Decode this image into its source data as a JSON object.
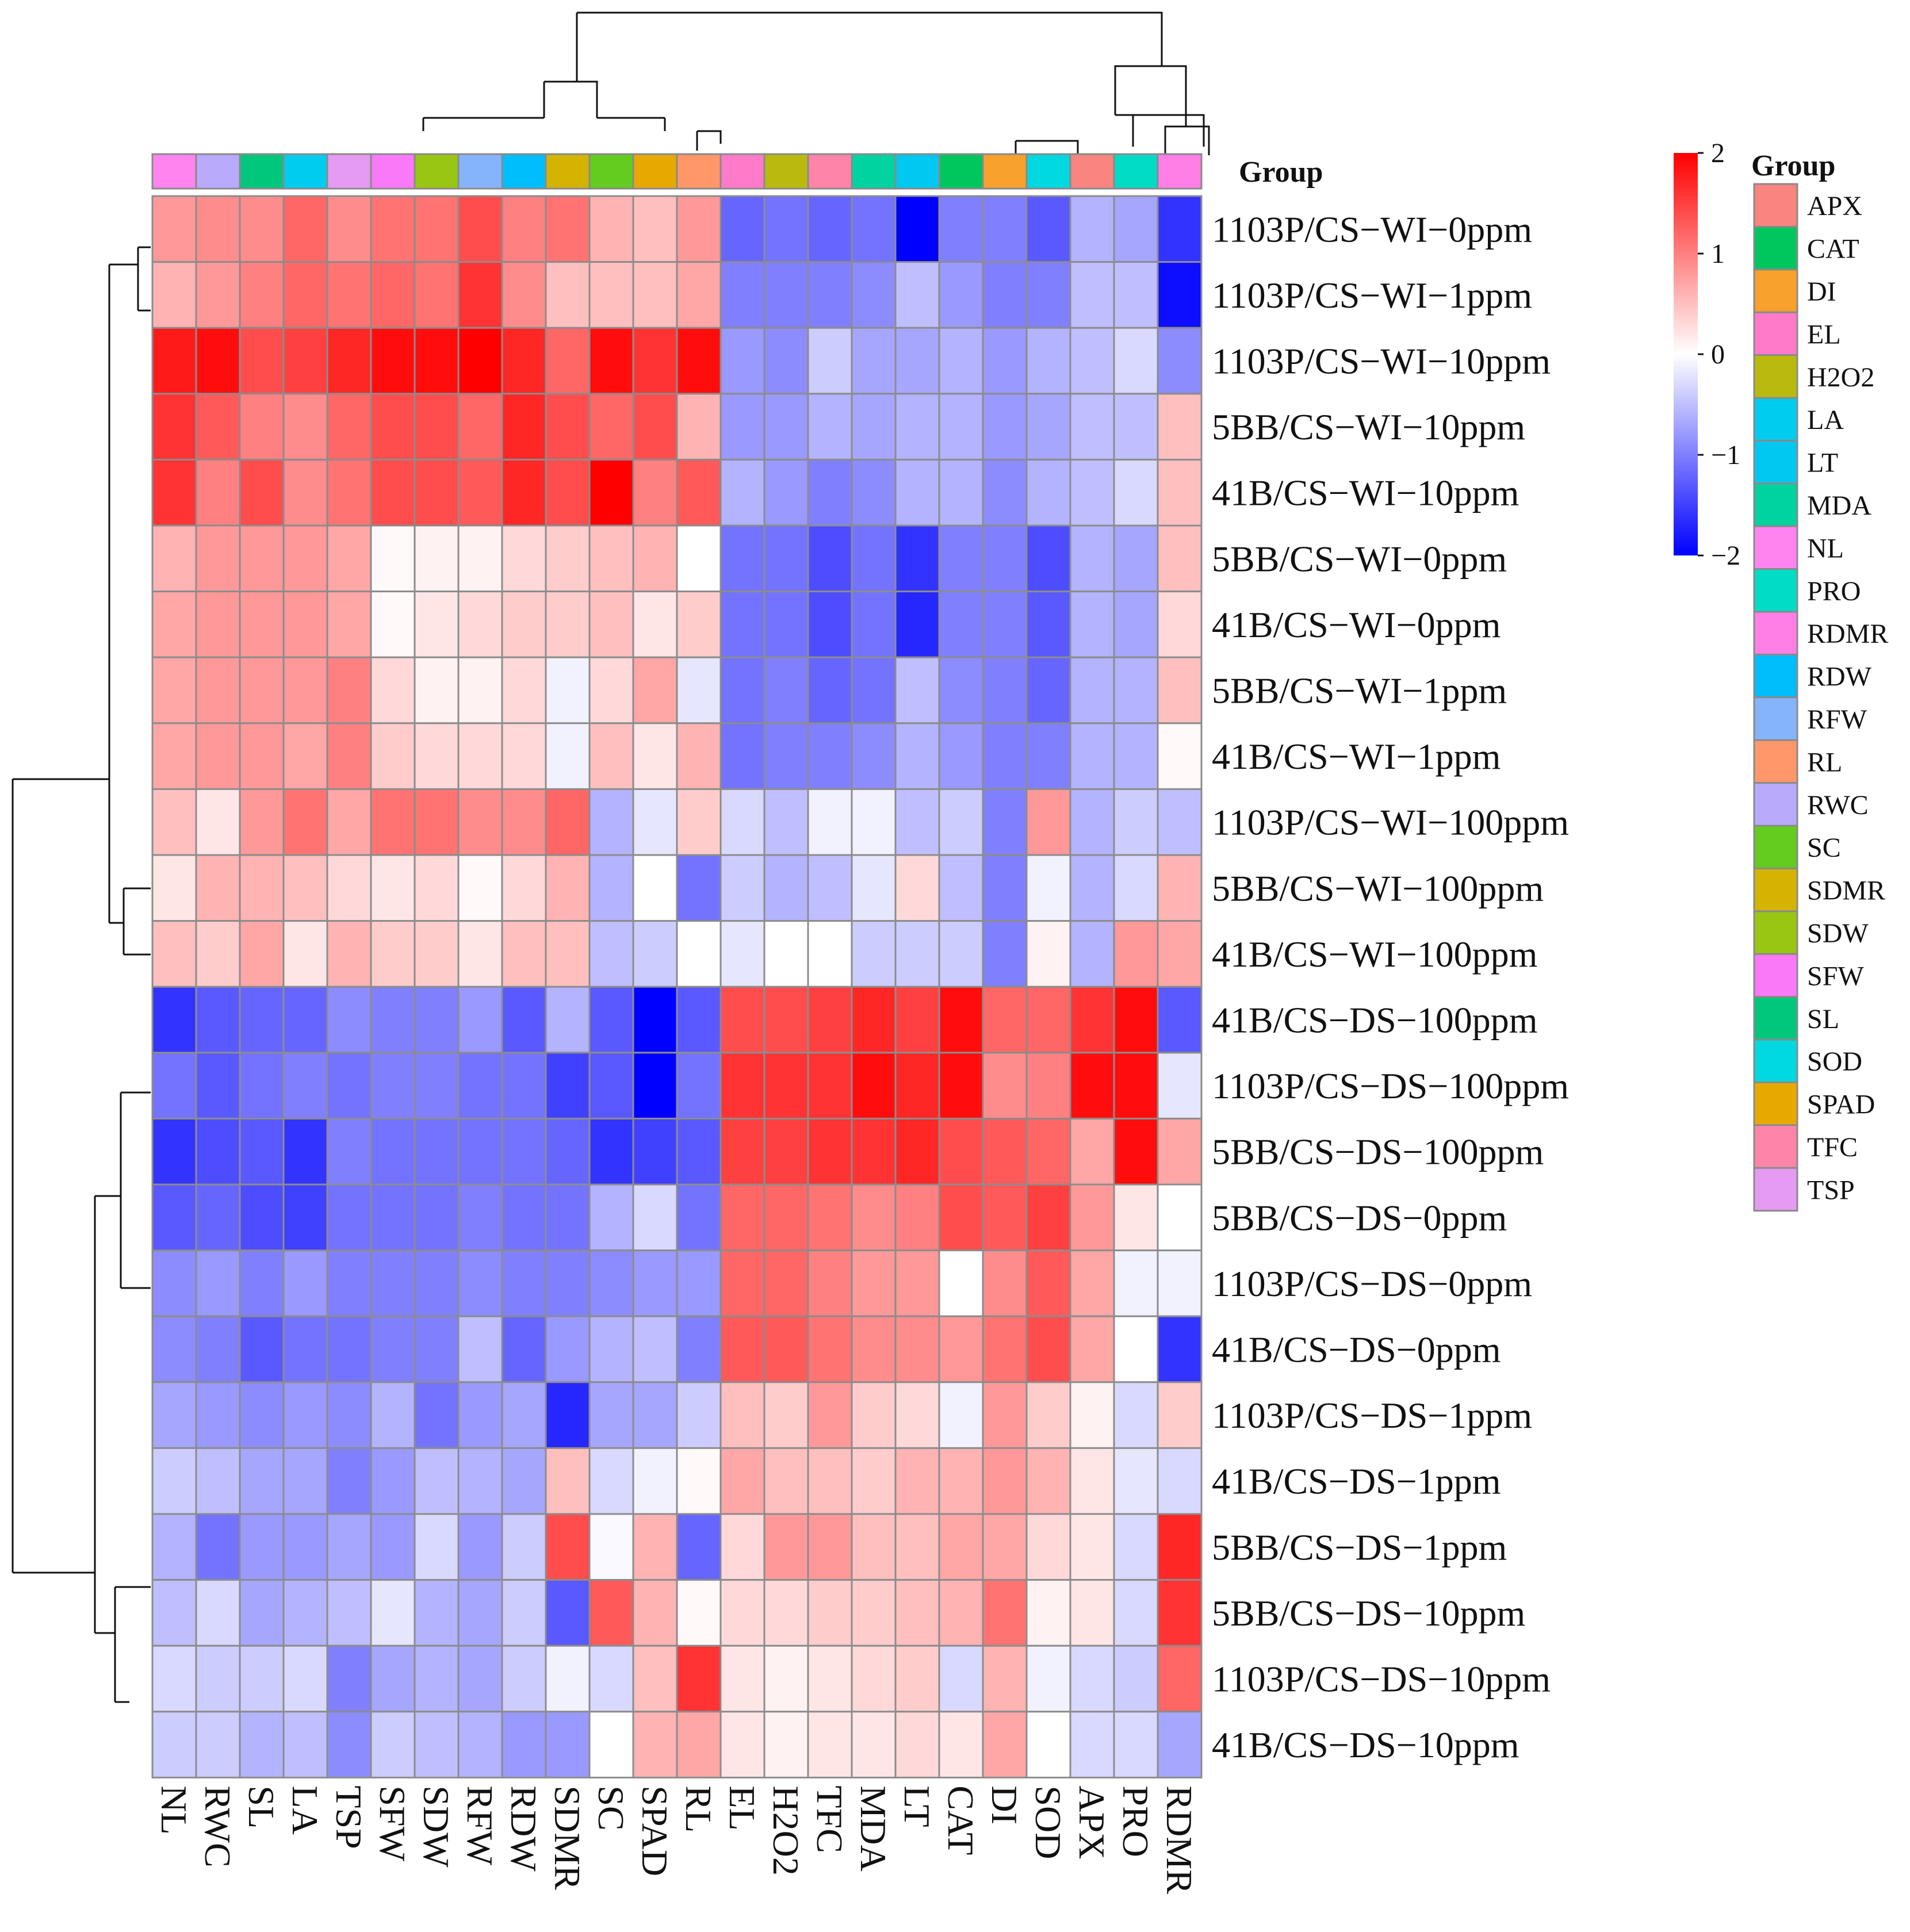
{
  "chart_data": {
    "type": "heatmap",
    "title": "",
    "color_scale": {
      "min": -2,
      "max": 2,
      "ticks": [
        2,
        1,
        0,
        -1,
        -2
      ],
      "tick_labels": [
        "2",
        "1",
        "0",
        "−1",
        "−2"
      ],
      "low_color": "#0000ff",
      "mid_color": "#ffffff",
      "high_color": "#ff0000"
    },
    "columns": [
      "NL",
      "RWC",
      "SL",
      "LA",
      "TSP",
      "SFW",
      "SDW",
      "RFW",
      "RDW",
      "SDMR",
      "SC",
      "SPAD",
      "RL",
      "EL",
      "H2O2",
      "TFC",
      "MDA",
      "LT",
      "CAT",
      "DI",
      "SOD",
      "APX",
      "PRO",
      "RDMR"
    ],
    "rows": [
      "1103P/CS−WI−0ppm",
      "1103P/CS−WI−1ppm",
      "1103P/CS−WI−10ppm",
      "5BB/CS−WI−10ppm",
      "41B/CS−WI−10ppm",
      "5BB/CS−WI−0ppm",
      "41B/CS−WI−0ppm",
      "5BB/CS−WI−1ppm",
      "41B/CS−WI−1ppm",
      "1103P/CS−WI−100ppm",
      "5BB/CS−WI−100ppm",
      "41B/CS−WI−100ppm",
      "41B/CS−DS−100ppm",
      "1103P/CS−DS−100ppm",
      "5BB/CS−DS−100ppm",
      "5BB/CS−DS−0ppm",
      "1103P/CS−DS−0ppm",
      "41B/CS−DS−0ppm",
      "1103P/CS−DS−1ppm",
      "41B/CS−DS−1ppm",
      "5BB/CS−DS−1ppm",
      "5BB/CS−DS−10ppm",
      "1103P/CS−DS−10ppm",
      "41B/CS−DS−10ppm"
    ],
    "values": [
      [
        0.8,
        0.9,
        0.9,
        1.2,
        0.9,
        1.1,
        1.1,
        1.4,
        1.0,
        1.1,
        0.6,
        0.5,
        0.8,
        -1.2,
        -1.1,
        -1.2,
        -1.1,
        -2.0,
        -1.0,
        -1.0,
        -1.3,
        -0.6,
        -0.7,
        -1.6
      ],
      [
        0.6,
        0.8,
        1.0,
        1.2,
        1.1,
        1.2,
        1.1,
        1.6,
        0.9,
        0.5,
        0.5,
        0.5,
        0.7,
        -1.0,
        -1.0,
        -1.0,
        -0.9,
        -0.5,
        -0.8,
        -1.0,
        -1.0,
        -0.5,
        -0.5,
        -1.9
      ],
      [
        1.8,
        1.9,
        1.4,
        1.5,
        1.7,
        1.9,
        1.9,
        2.0,
        1.7,
        1.2,
        1.9,
        1.6,
        1.9,
        -0.8,
        -0.9,
        -0.4,
        -0.7,
        -0.7,
        -0.6,
        -0.8,
        -0.6,
        -0.5,
        -0.3,
        -0.9
      ],
      [
        1.6,
        1.3,
        1.0,
        0.9,
        1.2,
        1.4,
        1.4,
        1.2,
        1.7,
        1.4,
        1.2,
        1.4,
        0.6,
        -0.8,
        -0.8,
        -0.6,
        -0.7,
        -0.6,
        -0.6,
        -0.8,
        -0.7,
        -0.5,
        -0.5,
        0.5
      ],
      [
        1.6,
        1.0,
        1.4,
        0.9,
        1.1,
        1.4,
        1.4,
        1.3,
        1.7,
        1.4,
        2.0,
        1.0,
        1.3,
        -0.6,
        -0.8,
        -1.0,
        -0.9,
        -0.6,
        -0.6,
        -0.9,
        -0.6,
        -0.5,
        -0.3,
        0.5
      ],
      [
        0.6,
        0.8,
        0.8,
        0.8,
        0.7,
        0.05,
        0.1,
        0.1,
        0.3,
        0.4,
        0.5,
        0.6,
        0.0,
        -1.1,
        -1.1,
        -1.4,
        -1.1,
        -1.6,
        -1.0,
        -1.0,
        -1.4,
        -0.6,
        -0.7,
        0.5
      ],
      [
        0.7,
        0.8,
        0.8,
        0.8,
        0.7,
        0.05,
        0.2,
        0.3,
        0.4,
        0.4,
        0.5,
        0.2,
        0.4,
        -1.1,
        -1.1,
        -1.4,
        -1.1,
        -1.7,
        -1.0,
        -1.0,
        -1.3,
        -0.6,
        -0.7,
        0.3
      ],
      [
        0.7,
        0.8,
        0.8,
        0.8,
        1.0,
        0.3,
        0.1,
        0.1,
        0.3,
        -0.1,
        0.3,
        0.7,
        -0.2,
        -1.1,
        -1.0,
        -1.2,
        -1.1,
        -0.5,
        -0.9,
        -1.0,
        -1.2,
        -0.6,
        -0.6,
        0.5
      ],
      [
        0.7,
        0.8,
        0.8,
        0.7,
        1.0,
        0.4,
        0.3,
        0.3,
        0.3,
        -0.1,
        0.5,
        0.2,
        0.6,
        -1.1,
        -1.0,
        -1.0,
        -0.9,
        -0.6,
        -0.8,
        -1.0,
        -1.0,
        -0.6,
        -0.6,
        0.05
      ],
      [
        0.5,
        0.2,
        0.8,
        1.1,
        0.7,
        1.1,
        1.1,
        0.9,
        0.9,
        1.2,
        -0.6,
        -0.2,
        0.4,
        -0.3,
        -0.5,
        -0.1,
        -0.1,
        -0.5,
        -0.4,
        -1.0,
        0.8,
        -0.6,
        -0.4,
        -0.5
      ],
      [
        0.2,
        0.6,
        0.6,
        0.5,
        0.3,
        0.2,
        0.3,
        0.05,
        0.3,
        0.6,
        -0.6,
        0.0,
        -1.1,
        -0.4,
        -0.6,
        -0.5,
        -0.2,
        0.3,
        -0.5,
        -1.0,
        -0.1,
        -0.6,
        -0.3,
        0.6
      ],
      [
        0.5,
        0.4,
        0.7,
        0.2,
        0.6,
        0.4,
        0.4,
        0.2,
        0.5,
        0.5,
        -0.5,
        -0.4,
        0.0,
        -0.2,
        0.0,
        0.0,
        -0.4,
        -0.4,
        -0.4,
        -1.0,
        0.1,
        -0.6,
        0.8,
        0.7
      ],
      [
        -1.6,
        -1.3,
        -1.2,
        -1.2,
        -0.9,
        -1.0,
        -1.0,
        -0.8,
        -1.3,
        -0.6,
        -1.3,
        -2.0,
        -1.3,
        1.4,
        1.4,
        1.5,
        1.7,
        1.5,
        1.9,
        1.2,
        1.2,
        1.6,
        1.9,
        -1.3
      ],
      [
        -1.1,
        -1.3,
        -1.1,
        -1.0,
        -1.1,
        -1.0,
        -1.0,
        -1.1,
        -1.1,
        -1.5,
        -1.3,
        -2.0,
        -1.1,
        1.6,
        1.6,
        1.6,
        1.9,
        1.7,
        1.9,
        0.9,
        1.0,
        1.9,
        1.9,
        -0.2
      ],
      [
        -1.6,
        -1.4,
        -1.3,
        -1.6,
        -1.0,
        -1.1,
        -1.1,
        -1.1,
        -1.1,
        -1.2,
        -1.6,
        -1.5,
        -1.3,
        1.5,
        1.5,
        1.6,
        1.6,
        1.7,
        1.4,
        1.3,
        1.2,
        0.7,
        1.9,
        0.7
      ],
      [
        -1.3,
        -1.2,
        -1.4,
        -1.5,
        -1.1,
        -1.1,
        -1.1,
        -1.0,
        -1.1,
        -1.1,
        -0.6,
        -0.3,
        -1.1,
        1.2,
        1.2,
        1.1,
        0.9,
        1.0,
        1.4,
        1.3,
        1.5,
        0.8,
        0.2,
        0.0
      ],
      [
        -0.9,
        -0.8,
        -1.0,
        -0.8,
        -1.0,
        -1.0,
        -1.0,
        -0.9,
        -1.0,
        -1.0,
        -0.9,
        -0.8,
        -0.8,
        1.2,
        1.2,
        1.0,
        0.8,
        0.8,
        0.0,
        0.9,
        1.3,
        0.7,
        -0.1,
        -0.1
      ],
      [
        -0.9,
        -1.0,
        -1.3,
        -1.1,
        -1.1,
        -1.0,
        -1.0,
        -0.5,
        -1.2,
        -0.8,
        -0.6,
        -0.5,
        -1.0,
        1.3,
        1.3,
        1.1,
        0.9,
        0.9,
        0.8,
        1.1,
        1.4,
        0.7,
        0.0,
        -1.6
      ],
      [
        -0.7,
        -0.8,
        -0.9,
        -0.8,
        -0.9,
        -0.6,
        -1.1,
        -0.8,
        -0.7,
        -1.7,
        -0.7,
        -0.7,
        -0.4,
        0.5,
        0.4,
        0.8,
        0.4,
        0.3,
        -0.1,
        0.8,
        0.4,
        0.1,
        -0.3,
        0.4
      ],
      [
        -0.4,
        -0.5,
        -0.7,
        -0.7,
        -1.0,
        -0.8,
        -0.5,
        -0.6,
        -0.7,
        0.5,
        -0.3,
        -0.1,
        0.05,
        0.7,
        0.5,
        0.5,
        0.4,
        0.6,
        0.6,
        0.8,
        0.6,
        0.2,
        -0.2,
        -0.3
      ],
      [
        -0.6,
        -1.1,
        -0.8,
        -0.8,
        -0.7,
        -0.8,
        -0.3,
        -0.8,
        -0.4,
        1.4,
        -0.05,
        0.6,
        -1.2,
        0.3,
        0.8,
        0.8,
        0.5,
        0.5,
        0.7,
        0.7,
        0.3,
        0.2,
        -0.3,
        1.7
      ],
      [
        -0.5,
        -0.3,
        -0.7,
        -0.6,
        -0.5,
        -0.2,
        -0.6,
        -0.7,
        -0.4,
        -1.3,
        1.3,
        0.6,
        0.05,
        0.3,
        0.3,
        0.4,
        0.4,
        0.5,
        0.6,
        1.1,
        0.1,
        0.2,
        -0.3,
        1.6
      ],
      [
        -0.3,
        -0.4,
        -0.4,
        -0.3,
        -1.0,
        -0.7,
        -0.6,
        -0.7,
        -0.4,
        -0.1,
        -0.3,
        0.5,
        1.6,
        0.2,
        0.1,
        0.2,
        0.3,
        0.4,
        -0.3,
        0.6,
        -0.1,
        -0.3,
        -0.4,
        1.2
      ],
      [
        -0.4,
        -0.4,
        -0.6,
        -0.5,
        -0.9,
        -0.4,
        -0.5,
        -0.6,
        -0.8,
        -0.8,
        0.0,
        0.6,
        0.7,
        0.2,
        0.1,
        0.2,
        0.2,
        0.3,
        0.2,
        0.7,
        0.0,
        -0.3,
        -0.3,
        -0.7
      ]
    ],
    "column_groups": [
      "NL",
      "RWC",
      "SL",
      "LA",
      "TSP",
      "SFW",
      "SDW",
      "RFW",
      "RDW",
      "SDMR",
      "SC",
      "SPAD",
      "RL",
      "EL",
      "H2O2",
      "TFC",
      "MDA",
      "LT",
      "CAT",
      "DI",
      "SOD",
      "APX",
      "PRO",
      "RDMR"
    ],
    "legend": {
      "title": "Group",
      "placement": "right",
      "items": [
        {
          "label": "APX",
          "color": "#F8857E"
        },
        {
          "label": "CAT",
          "color": "#00C65E"
        },
        {
          "label": "DI",
          "color": "#F8A12C"
        },
        {
          "label": "EL",
          "color": "#FF7BC9"
        },
        {
          "label": "H2O2",
          "color": "#BABA0E"
        },
        {
          "label": "LA",
          "color": "#00CCEF"
        },
        {
          "label": "LT",
          "color": "#00C8F0"
        },
        {
          "label": "MDA",
          "color": "#00D3A0"
        },
        {
          "label": "NL",
          "color": "#FF84F0"
        },
        {
          "label": "PRO",
          "color": "#00DCC6"
        },
        {
          "label": "RDMR",
          "color": "#FF7FE6"
        },
        {
          "label": "RDW",
          "color": "#00BEFC"
        },
        {
          "label": "RFW",
          "color": "#85B4FD"
        },
        {
          "label": "RL",
          "color": "#FF9769"
        },
        {
          "label": "RWC",
          "color": "#B9AAFC"
        },
        {
          "label": "SC",
          "color": "#64CB1F"
        },
        {
          "label": "SDMR",
          "color": "#D4B400"
        },
        {
          "label": "SDW",
          "color": "#99C612"
        },
        {
          "label": "SFW",
          "color": "#F979F9"
        },
        {
          "label": "SL",
          "color": "#00C77B"
        },
        {
          "label": "SOD",
          "color": "#00D9E0"
        },
        {
          "label": "SPAD",
          "color": "#E7A900"
        },
        {
          "label": "TFC",
          "color": "#FF84A9"
        },
        {
          "label": "TSP",
          "color": "#E59BF2"
        }
      ]
    },
    "annotation_label": "Group",
    "dendrograms": {
      "rows": true,
      "columns": true
    },
    "grid": true
  }
}
